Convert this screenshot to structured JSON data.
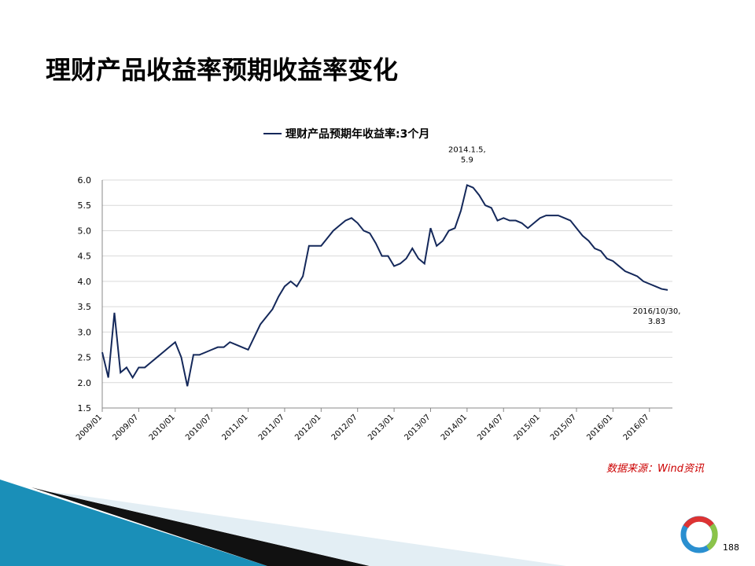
{
  "title": "理财产品收益率预期收益率变化",
  "source": "数据来源：Wind资讯",
  "page_number": "188",
  "chart_data": {
    "type": "line",
    "x": [
      "2009/01",
      null,
      null,
      null,
      null,
      null,
      "2009/07",
      null,
      null,
      null,
      null,
      null,
      "2010/01",
      null,
      null,
      null,
      null,
      null,
      "2010/07",
      null,
      null,
      null,
      null,
      null,
      "2011/01",
      null,
      null,
      null,
      null,
      null,
      "2011/07",
      null,
      null,
      null,
      null,
      null,
      "2012/01",
      null,
      null,
      null,
      null,
      null,
      "2012/07",
      null,
      null,
      null,
      null,
      null,
      "2013/01",
      null,
      null,
      null,
      null,
      null,
      "2013/07",
      null,
      null,
      null,
      null,
      null,
      "2014/01",
      null,
      null,
      null,
      null,
      null,
      "2014/07",
      null,
      null,
      null,
      null,
      null,
      "2015/01",
      null,
      null,
      null,
      null,
      null,
      "2015/07",
      null,
      null,
      null,
      null,
      null,
      "2016/01",
      null,
      null,
      null,
      null,
      null,
      "2016/07",
      null,
      null,
      null
    ],
    "series": [
      {
        "name": "理财产品预期年收益率:3个月",
        "color": "#14285a",
        "values": [
          2.6,
          2.1,
          3.38,
          2.2,
          2.3,
          2.1,
          2.3,
          2.3,
          2.4,
          2.5,
          2.6,
          2.7,
          2.8,
          2.5,
          1.93,
          2.55,
          2.55,
          2.6,
          2.65,
          2.7,
          2.7,
          2.8,
          2.75,
          2.7,
          2.65,
          2.9,
          3.15,
          3.3,
          3.45,
          3.7,
          3.9,
          4.0,
          3.9,
          4.1,
          4.7,
          4.7,
          4.7,
          4.85,
          5.0,
          5.1,
          5.2,
          5.25,
          5.15,
          5.0,
          4.95,
          4.75,
          4.5,
          4.5,
          4.3,
          4.35,
          4.45,
          4.65,
          4.45,
          4.35,
          5.05,
          4.7,
          4.8,
          5.0,
          5.05,
          5.4,
          5.9,
          5.85,
          5.7,
          5.5,
          5.45,
          5.2,
          5.25,
          5.2,
          5.2,
          5.15,
          5.05,
          5.15,
          5.25,
          5.3,
          5.3,
          5.3,
          5.25,
          5.2,
          5.05,
          4.9,
          4.8,
          4.65,
          4.6,
          4.45,
          4.4,
          4.3,
          4.2,
          4.15,
          4.1,
          4.0,
          3.95,
          3.9,
          3.85,
          3.83
        ]
      }
    ],
    "ylim": [
      1.5,
      6.0
    ],
    "yticks": [
      {
        "value": 1.5,
        "label": "1.5"
      },
      {
        "value": 2,
        "label": "2.0"
      },
      {
        "value": 2.5,
        "label": "2.5"
      },
      {
        "value": 3,
        "label": "3.0"
      },
      {
        "value": 3.5,
        "label": "3.5"
      },
      {
        "value": 4,
        "label": "4.0"
      },
      {
        "value": 4.5,
        "label": "4.5"
      },
      {
        "value": 5,
        "label": "5.0"
      },
      {
        "value": 5.5,
        "label": "5.5"
      },
      {
        "value": 6,
        "label": "6.0"
      }
    ],
    "grid": true,
    "annotations": [
      {
        "text": [
          "2014.1.5,",
          "5.9"
        ],
        "index": 60
      },
      {
        "text": [
          "2016/10/30,",
          "3.83"
        ],
        "index": 93
      }
    ]
  }
}
